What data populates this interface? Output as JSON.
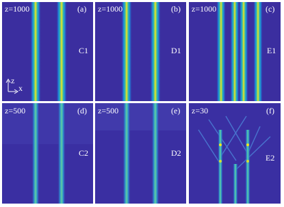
{
  "panels": [
    {
      "z_label": "z=1000",
      "tag": "(a)",
      "name": "C1"
    },
    {
      "z_label": "z=1000",
      "tag": "(b)",
      "name": "D1"
    },
    {
      "z_label": "z=1000",
      "tag": "(c)",
      "name": "E1"
    },
    {
      "z_label": "z=500",
      "tag": "(d)",
      "name": "C2"
    },
    {
      "z_label": "z=500",
      "tag": "(e)",
      "name": "D2"
    },
    {
      "z_label": "z=30",
      "tag": "(f)",
      "name": "E2"
    }
  ],
  "axes": {
    "vertical": "z",
    "horizontal": "x"
  }
}
